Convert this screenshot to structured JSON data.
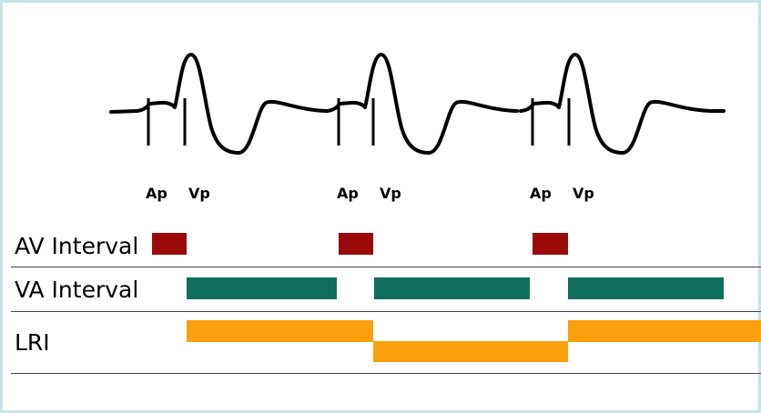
{
  "beats": [
    {
      "atrial": "Ap",
      "ventricular": "Vp"
    },
    {
      "atrial": "Ap",
      "ventricular": "Vp"
    },
    {
      "atrial": "Ap",
      "ventricular": "Vp"
    }
  ],
  "rows": [
    "AV Interval",
    "VA Interval",
    "LRI"
  ]
}
